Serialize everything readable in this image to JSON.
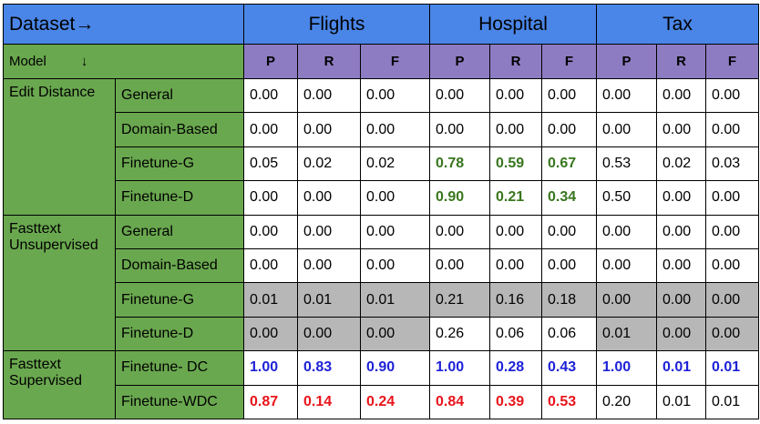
{
  "header": {
    "corner": "Dataset→",
    "datasets": [
      "Flights",
      "Hospital",
      "Tax"
    ],
    "model_label": "Model",
    "model_arrow": "↓",
    "metrics": [
      "P",
      "R",
      "F",
      "P",
      "R",
      "F",
      "P",
      "R",
      "F"
    ]
  },
  "groups": [
    {
      "name": "Edit Distance",
      "rows": [
        {
          "label": "General",
          "values": [
            "0.00",
            "0.00",
            "0.00",
            "0.00",
            "0.00",
            "0.00",
            "0.00",
            "0.00",
            "0.00"
          ]
        },
        {
          "label": "Domain-Based",
          "values": [
            "0.00",
            "0.00",
            "0.00",
            "0.00",
            "0.00",
            "0.00",
            "0.00",
            "0.00",
            "0.00"
          ]
        },
        {
          "label": "Finetune-G",
          "values": [
            "0.05",
            "0.02",
            "0.02",
            "0.78",
            "0.59",
            "0.67",
            "0.53",
            "0.02",
            "0.03"
          ]
        },
        {
          "label": "Finetune-D",
          "values": [
            "0.00",
            "0.00",
            "0.00",
            "0.90",
            "0.21",
            "0.34",
            "0.50",
            "0.00",
            "0.00"
          ]
        }
      ]
    },
    {
      "name": "Fasttext Unsupervised",
      "rows": [
        {
          "label": "General",
          "values": [
            "0.00",
            "0.00",
            "0.00",
            "0.00",
            "0.00",
            "0.00",
            "0.00",
            "0.00",
            "0.00"
          ]
        },
        {
          "label": "Domain-Based",
          "values": [
            "0.00",
            "0.00",
            "0.00",
            "0.00",
            "0.00",
            "0.00",
            "0.00",
            "0.00",
            "0.00"
          ]
        },
        {
          "label": "Finetune-G",
          "values": [
            "0.01",
            "0.01",
            "0.01",
            "0.21",
            "0.16",
            "0.18",
            "0.00",
            "0.00",
            "0.00"
          ]
        },
        {
          "label": "Finetune-D",
          "values": [
            "0.00",
            "0.00",
            "0.00",
            "0.26",
            "0.06",
            "0.06",
            "0.01",
            "0.00",
            "0.00"
          ]
        }
      ]
    },
    {
      "name": "Fasttext Supervised",
      "rows": [
        {
          "label": "Finetune- DC",
          "values": [
            "1.00",
            "0.83",
            "0.90",
            "1.00",
            "0.28",
            "0.43",
            "1.00",
            "0.01",
            "0.01"
          ]
        },
        {
          "label": "Finetune-WDC",
          "values": [
            "0.87",
            "0.14",
            "0.24",
            "0.84",
            "0.39",
            "0.53",
            "0.20",
            "0.01",
            "0.01"
          ]
        }
      ]
    }
  ],
  "colors": {
    "header_blue": "#4a86e8",
    "header_purple": "#8e7cc3",
    "model_green": "#6aa84f",
    "shaded_gray": "#b7b7b7",
    "highlight_blue": "#1e22d6",
    "highlight_red": "#e8141b",
    "highlight_green": "#38761d"
  }
}
